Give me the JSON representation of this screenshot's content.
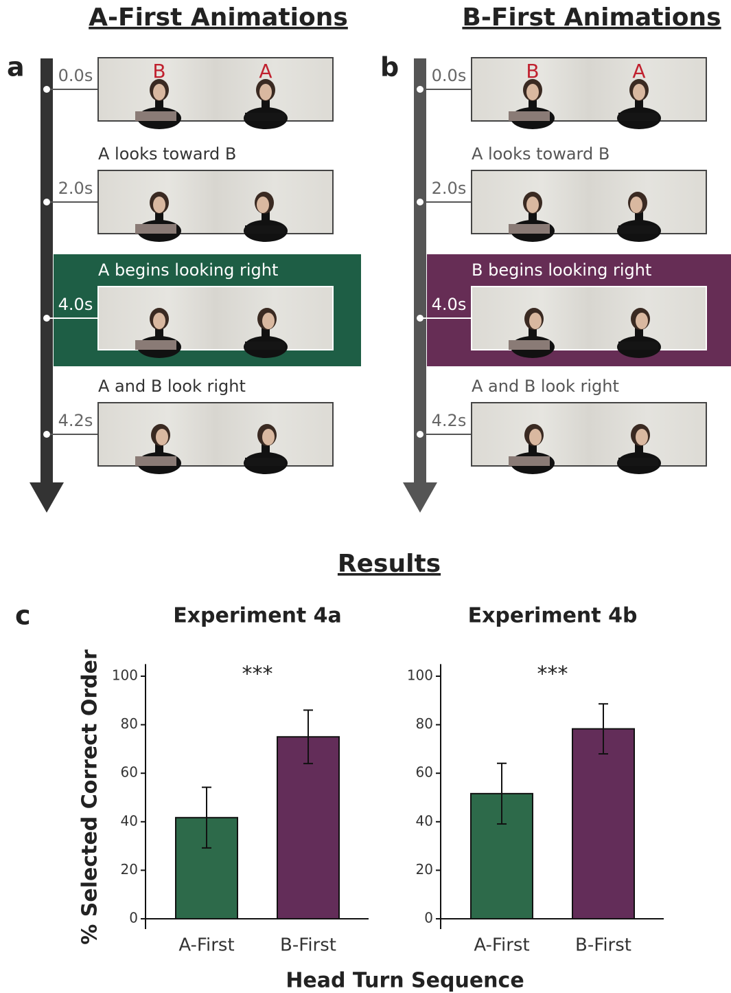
{
  "timeline_panels": [
    {
      "label": "a",
      "title": "A-First Animations",
      "arrow_color": "#333333",
      "highlight_color": "#1e5e45",
      "frames": [
        {
          "time": "0.0s",
          "letters": [
            "B",
            "A"
          ]
        },
        {
          "time": "2.0s",
          "caption": "A looks toward B"
        },
        {
          "time": "4.0s",
          "caption": "A begins looking right",
          "highlight": true
        },
        {
          "time": "4.2s",
          "caption": "A and B look right"
        }
      ]
    },
    {
      "label": "b",
      "title": "B-First Animations",
      "arrow_color": "#555555",
      "highlight_color": "#662d55",
      "frames": [
        {
          "time": "0.0s",
          "letters": [
            "B",
            "A"
          ]
        },
        {
          "time": "2.0s",
          "caption": "A looks toward B"
        },
        {
          "time": "4.0s",
          "caption": "B begins looking right",
          "highlight": true
        },
        {
          "time": "4.2s",
          "caption": "A and B look right"
        }
      ]
    }
  ],
  "results": {
    "title": "Results",
    "label": "c",
    "y_label": "% Selected Correct Order",
    "x_label": "Head Turn Sequence"
  },
  "chart_data": [
    {
      "type": "bar",
      "title": "Experiment 4a",
      "annotation": "***",
      "categories": [
        "A-First",
        "B-First"
      ],
      "values": [
        41.7,
        75
      ],
      "errors": [
        12.5,
        11
      ],
      "colors": [
        "#2d6a4a",
        "#632d59"
      ],
      "ylim": [
        0,
        105
      ],
      "yticks": [
        0,
        20,
        40,
        60,
        80,
        100
      ]
    },
    {
      "type": "bar",
      "title": "Experiment 4b",
      "annotation": "***",
      "categories": [
        "A-First",
        "B-First"
      ],
      "values": [
        51.6,
        78.3
      ],
      "errors": [
        12.5,
        10.3
      ],
      "colors": [
        "#2d6a4a",
        "#632d59"
      ],
      "ylim": [
        0,
        105
      ],
      "yticks": [
        0,
        20,
        40,
        60,
        80,
        100
      ]
    }
  ]
}
